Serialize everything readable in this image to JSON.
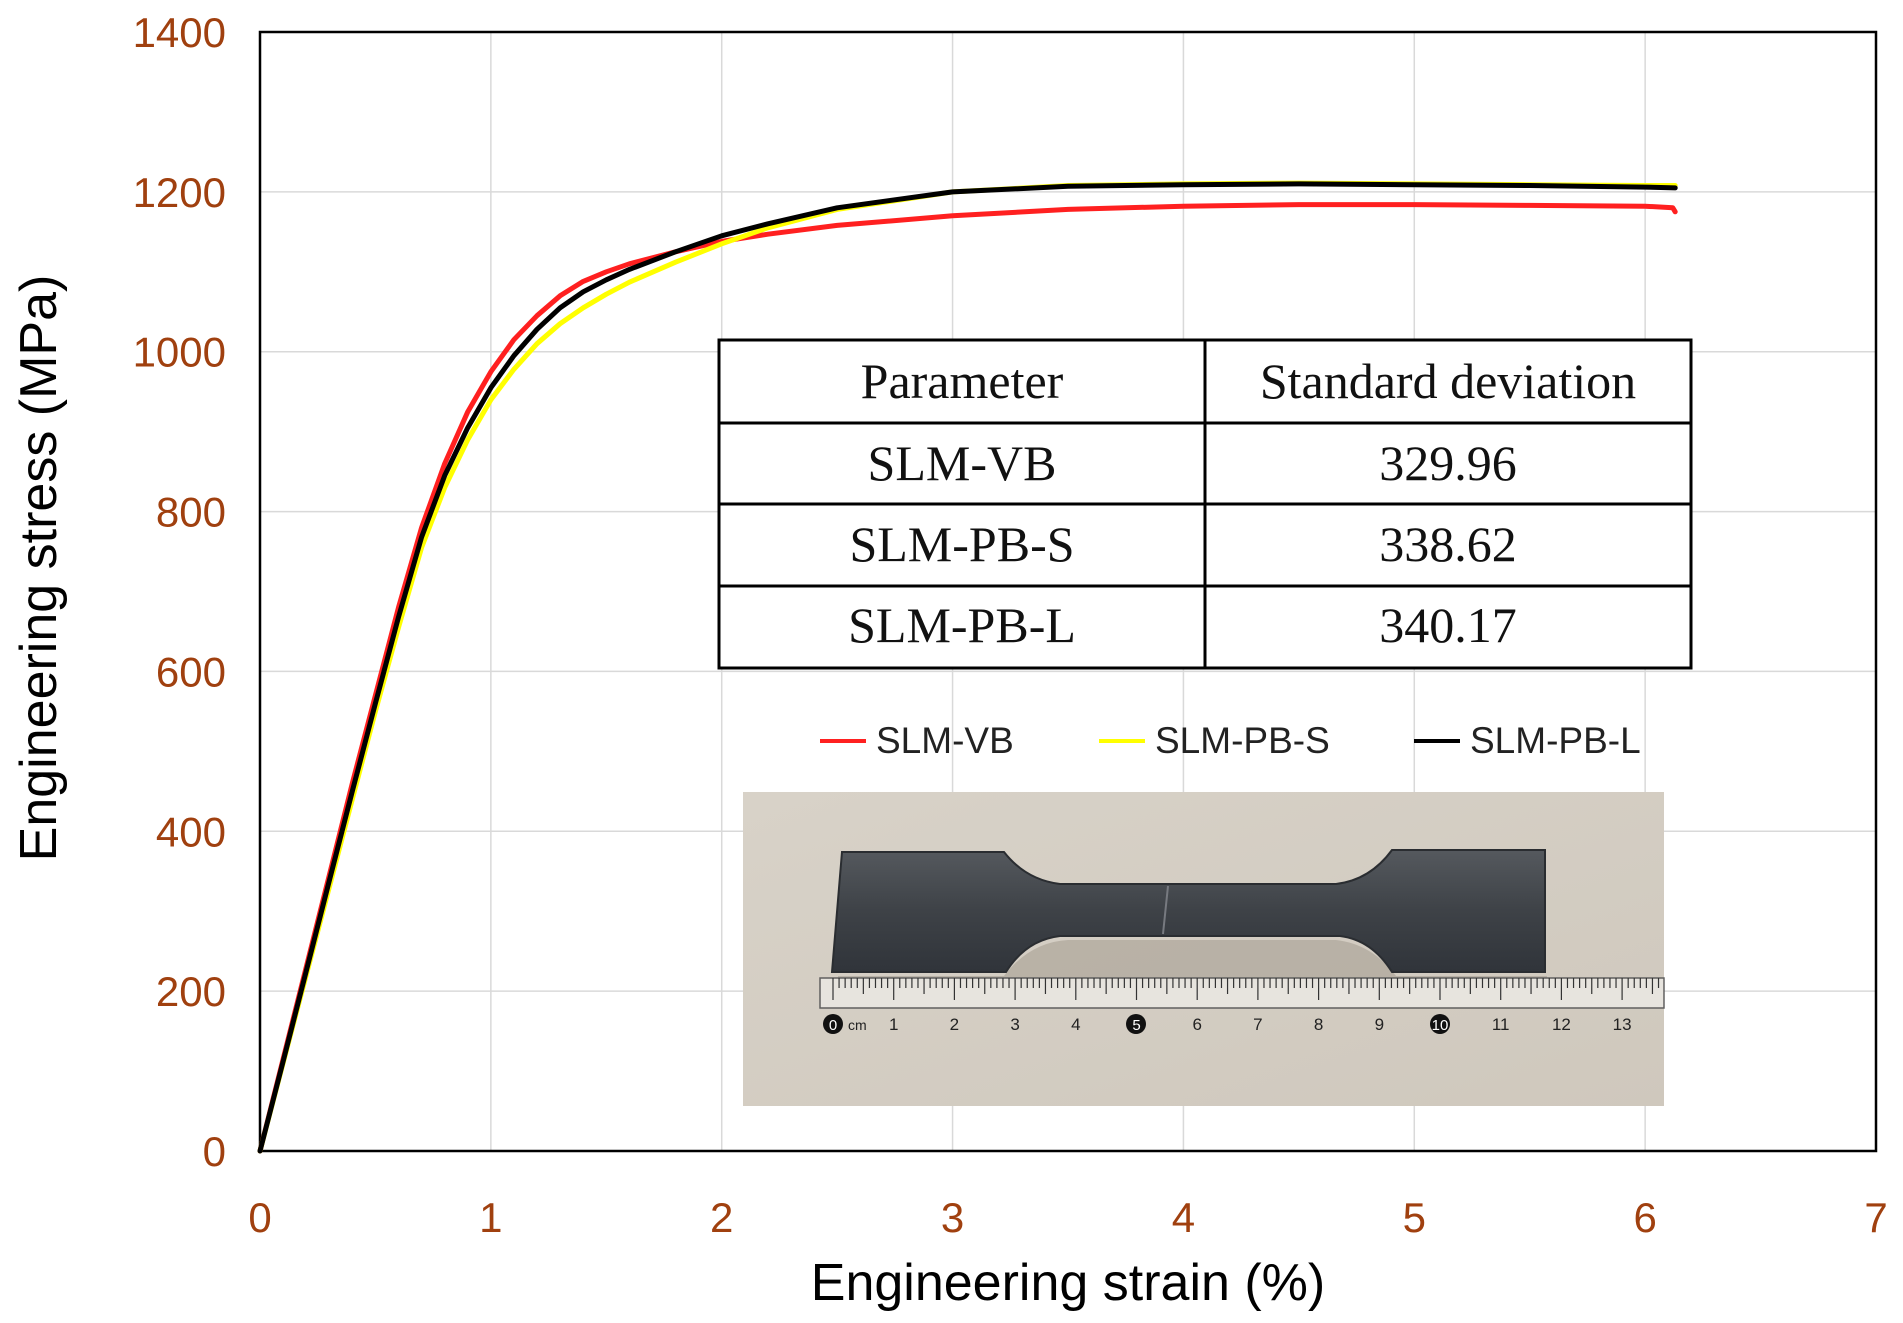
{
  "chart_data": {
    "type": "line",
    "xlabel": "Engineering strain (%)",
    "ylabel": "Engineering stress (MPa)",
    "xlim": [
      0,
      7
    ],
    "ylim": [
      0,
      1400
    ],
    "xticks": [
      "0",
      "1",
      "2",
      "3",
      "4",
      "5",
      "6",
      "7"
    ],
    "yticks": [
      "0",
      "200",
      "400",
      "600",
      "800",
      "1000",
      "1200",
      "1400"
    ],
    "grid": true,
    "legend_position": "inside-right",
    "series": [
      {
        "name": "SLM-VB",
        "color": "#ff2020",
        "x": [
          0,
          0.1,
          0.2,
          0.3,
          0.4,
          0.5,
          0.6,
          0.7,
          0.8,
          0.9,
          1.0,
          1.1,
          1.2,
          1.3,
          1.4,
          1.5,
          1.6,
          1.8,
          2.0,
          2.2,
          2.5,
          3.0,
          3.5,
          4.0,
          4.5,
          5.0,
          5.5,
          6.0,
          6.12,
          6.13
        ],
        "y": [
          0,
          115,
          230,
          345,
          460,
          570,
          680,
          780,
          860,
          925,
          975,
          1015,
          1045,
          1070,
          1088,
          1100,
          1110,
          1125,
          1138,
          1147,
          1158,
          1170,
          1178,
          1182,
          1184,
          1184,
          1183,
          1182,
          1180,
          1175
        ]
      },
      {
        "name": "SLM-PB-S",
        "color": "#ffff00",
        "x": [
          0,
          0.1,
          0.2,
          0.3,
          0.4,
          0.5,
          0.6,
          0.7,
          0.8,
          0.9,
          1.0,
          1.1,
          1.2,
          1.3,
          1.4,
          1.5,
          1.6,
          1.8,
          2.0,
          2.2,
          2.5,
          3.0,
          3.5,
          4.0,
          4.5,
          5.0,
          5.5,
          6.0,
          6.13
        ],
        "y": [
          0,
          110,
          220,
          330,
          440,
          550,
          655,
          755,
          830,
          890,
          940,
          978,
          1010,
          1035,
          1055,
          1072,
          1087,
          1112,
          1135,
          1155,
          1178,
          1200,
          1208,
          1210,
          1211,
          1210,
          1209,
          1208,
          1208
        ]
      },
      {
        "name": "SLM-PB-L",
        "color": "#000000",
        "x": [
          0,
          0.1,
          0.2,
          0.3,
          0.4,
          0.5,
          0.6,
          0.7,
          0.8,
          0.9,
          1.0,
          1.1,
          1.2,
          1.3,
          1.4,
          1.5,
          1.6,
          1.8,
          2.0,
          2.2,
          2.5,
          3.0,
          3.5,
          4.0,
          4.5,
          5.0,
          5.5,
          6.0,
          6.13
        ],
        "y": [
          0,
          112,
          225,
          338,
          450,
          560,
          668,
          768,
          845,
          905,
          955,
          995,
          1028,
          1055,
          1075,
          1090,
          1103,
          1125,
          1145,
          1160,
          1180,
          1200,
          1207,
          1209,
          1210,
          1209,
          1208,
          1206,
          1205
        ]
      }
    ]
  },
  "table": {
    "headers": [
      "Parameter",
      "Standard deviation"
    ],
    "rows": [
      [
        "SLM-VB",
        "329.96"
      ],
      [
        "SLM-PB-S",
        "338.62"
      ],
      [
        "SLM-PB-L",
        "340.17"
      ]
    ]
  },
  "inset_photo": {
    "ruler_labels": [
      "0",
      "cm",
      "1",
      "2",
      "3",
      "4",
      "5",
      "6",
      "7",
      "8",
      "9",
      "10",
      "11",
      "12",
      "13"
    ]
  },
  "colors": {
    "axis_label": "#29c5f6",
    "tick_label": "#a0400f",
    "grid": "#d9d9d9"
  }
}
